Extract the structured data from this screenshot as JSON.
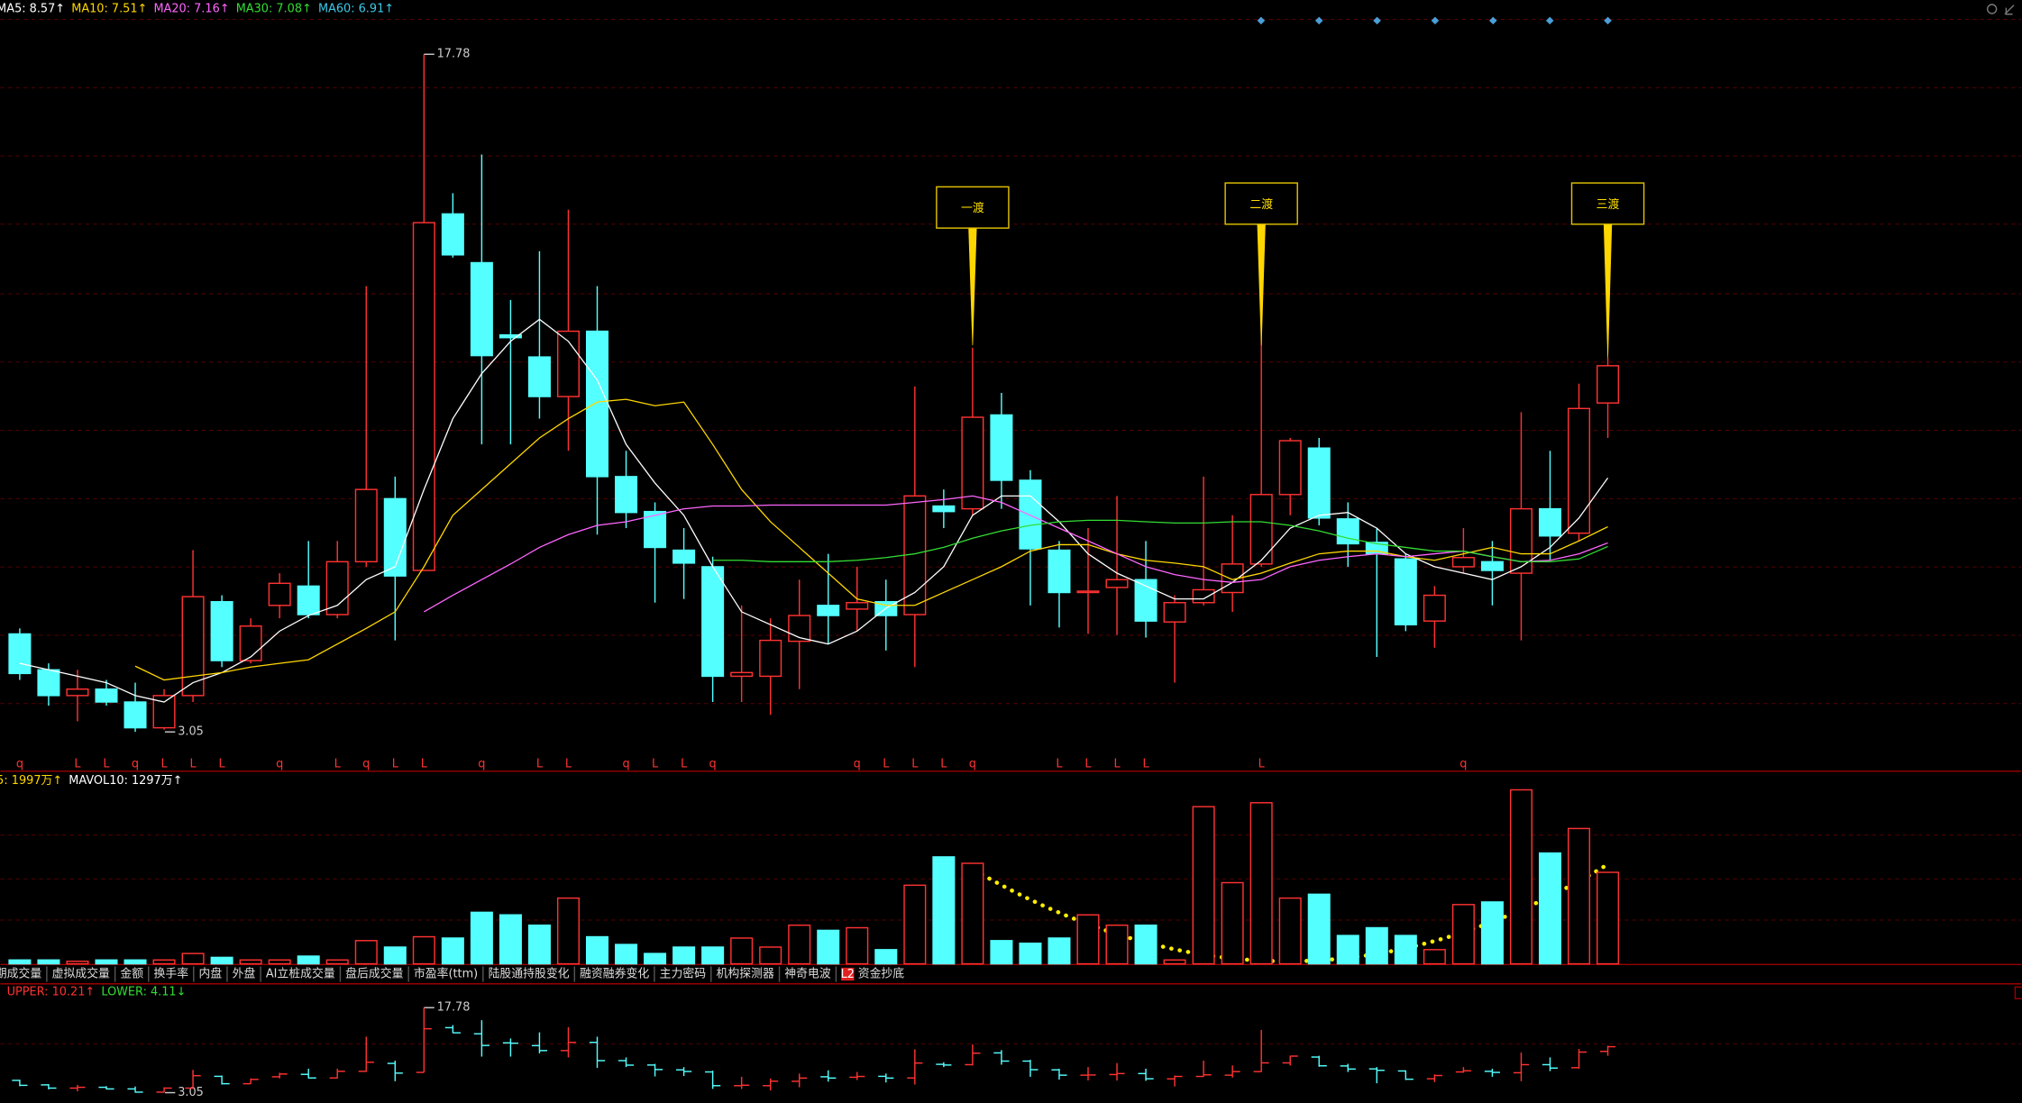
{
  "chart_data": [
    {
      "type": "candlestick",
      "legend": [
        {
          "text": "MA5: 8.57↑",
          "color": "#ffffff"
        },
        {
          "text": "MA10: 7.51↑",
          "color": "#ffd700"
        },
        {
          "text": "MA20: 7.16↑",
          "color": "#ff66ff"
        },
        {
          "text": "MA30: 7.08↑",
          "color": "#33dd33"
        },
        {
          "text": "MA60: 6.91↑",
          "color": "#3cc8e8"
        }
      ],
      "up_color": "#ff3232",
      "down_color": "#54ffff",
      "ylim": [
        2.21,
        18.96
      ],
      "open": [
        5.18,
        4.4,
        3.84,
        3.98,
        3.7,
        3.14,
        3.84,
        5.88,
        4.6,
        5.8,
        6.22,
        5.6,
        6.75,
        8.12,
        6.56,
        14.31,
        13.25,
        11.68,
        11.2,
        10.34,
        11.76,
        8.6,
        7.84,
        7.0,
        6.64,
        4.26,
        4.26,
        5.02,
        5.8,
        5.72,
        5.88,
        5.6,
        7.96,
        7.9,
        9.94,
        8.52,
        7.0,
        6.08,
        6.19,
        6.36,
        5.44,
        5.86,
        6.08,
        6.7,
        8.21,
        9.22,
        7.68,
        7.17,
        6.81,
        5.46,
        6.64,
        6.75,
        6.5,
        7.9,
        7.37,
        10.2
      ],
      "high": [
        5.3,
        4.54,
        4.4,
        4.18,
        4.12,
        3.98,
        7.0,
        6.02,
        5.52,
        6.5,
        7.2,
        7.2,
        12.74,
        8.6,
        17.78,
        14.76,
        15.6,
        12.44,
        13.5,
        14.4,
        12.74,
        9.16,
        8.04,
        7.48,
        6.86,
        5.8,
        5.52,
        6.36,
        6.92,
        6.64,
        6.36,
        10.56,
        8.32,
        11.4,
        10.42,
        8.74,
        7.2,
        7.48,
        8.18,
        7.2,
        6.02,
        8.6,
        7.76,
        13.92,
        9.44,
        9.44,
        8.04,
        7.48,
        6.92,
        6.22,
        7.48,
        7.2,
        10.0,
        9.16,
        10.62,
        11.18
      ],
      "low": [
        4.18,
        3.62,
        3.28,
        3.62,
        3.05,
        3.1,
        3.7,
        4.46,
        4.54,
        5.52,
        5.52,
        5.52,
        6.64,
        5.04,
        6.56,
        13.36,
        9.3,
        9.3,
        9.86,
        9.16,
        7.34,
        7.48,
        5.86,
        5.94,
        3.7,
        3.7,
        3.42,
        3.98,
        4.96,
        5.24,
        4.82,
        4.46,
        7.48,
        7.76,
        7.9,
        5.8,
        5.32,
        5.18,
        5.16,
        5.1,
        4.12,
        5.8,
        5.66,
        6.64,
        7.76,
        7.54,
        6.64,
        4.68,
        5.24,
        4.88,
        6.5,
        5.8,
        5.04,
        6.78,
        7.2,
        9.44
      ],
      "close": [
        4.32,
        3.84,
        3.98,
        3.7,
        3.14,
        3.84,
        5.99,
        4.6,
        5.35,
        6.28,
        5.6,
        6.75,
        8.32,
        6.44,
        14.12,
        13.42,
        11.23,
        11.62,
        10.34,
        11.76,
        8.6,
        7.82,
        7.06,
        6.72,
        4.26,
        4.34,
        5.04,
        5.58,
        5.58,
        5.86,
        5.58,
        8.18,
        7.84,
        9.89,
        8.52,
        7.03,
        6.08,
        6.11,
        6.36,
        5.46,
        5.86,
        6.14,
        6.7,
        8.21,
        9.38,
        7.7,
        7.14,
        6.92,
        5.38,
        6.02,
        6.84,
        6.56,
        7.9,
        7.31,
        10.08,
        11.01
      ],
      "lines": [
        {
          "color": "#ffffff",
          "values": [
            4.54,
            4.4,
            4.26,
            4.12,
            3.84,
            3.7,
            4.12,
            4.34,
            4.68,
            5.24,
            5.58,
            5.8,
            6.36,
            6.64,
            8.32,
            9.86,
            10.84,
            11.54,
            12.02,
            11.54,
            10.7,
            9.3,
            8.46,
            7.76,
            6.64,
            5.66,
            5.38,
            5.1,
            4.96,
            5.24,
            5.74,
            6.08,
            6.64,
            7.76,
            8.18,
            8.18,
            7.62,
            6.92,
            6.5,
            6.22,
            5.94,
            5.94,
            6.3,
            6.78,
            7.48,
            7.76,
            7.82,
            7.48,
            6.92,
            6.64,
            6.5,
            6.36,
            6.64,
            7.06,
            7.7,
            8.57
          ]
        },
        {
          "color": "#ffd700",
          "values": [
            null,
            null,
            null,
            null,
            4.48,
            4.18,
            4.26,
            4.34,
            4.46,
            4.54,
            4.62,
            4.96,
            5.3,
            5.66,
            6.64,
            7.76,
            8.32,
            8.88,
            9.44,
            9.86,
            10.22,
            10.28,
            10.14,
            10.22,
            9.3,
            8.32,
            7.62,
            7.06,
            6.5,
            5.94,
            5.8,
            5.8,
            6.08,
            6.36,
            6.64,
            6.98,
            7.12,
            7.12,
            6.92,
            6.78,
            6.72,
            6.64,
            6.36,
            6.5,
            6.72,
            6.92,
            6.98,
            6.98,
            6.86,
            6.78,
            6.92,
            7.06,
            6.92,
            6.92,
            7.2,
            7.51
          ]
        },
        {
          "color": "#ff66ff",
          "values": [
            null,
            null,
            null,
            null,
            null,
            null,
            null,
            null,
            null,
            null,
            null,
            null,
            null,
            null,
            5.66,
            6.02,
            6.36,
            6.7,
            7.06,
            7.34,
            7.54,
            7.62,
            7.76,
            7.9,
            7.96,
            7.96,
            7.98,
            7.98,
            7.98,
            7.98,
            7.98,
            8.04,
            8.1,
            8.18,
            8.04,
            7.76,
            7.48,
            7.2,
            6.92,
            6.64,
            6.47,
            6.36,
            6.3,
            6.36,
            6.64,
            6.78,
            6.86,
            6.92,
            6.86,
            6.92,
            6.98,
            6.86,
            6.75,
            6.78,
            6.92,
            7.16
          ]
        },
        {
          "color": "#33dd33",
          "values": [
            null,
            null,
            null,
            null,
            null,
            null,
            null,
            null,
            null,
            null,
            null,
            null,
            null,
            null,
            null,
            null,
            null,
            null,
            null,
            null,
            null,
            null,
            null,
            null,
            6.78,
            6.78,
            6.75,
            6.75,
            6.75,
            6.78,
            6.84,
            6.92,
            7.06,
            7.26,
            7.42,
            7.54,
            7.62,
            7.65,
            7.65,
            7.62,
            7.59,
            7.59,
            7.62,
            7.62,
            7.54,
            7.42,
            7.26,
            7.14,
            7.06,
            6.98,
            6.98,
            6.86,
            6.75,
            6.75,
            6.81,
            7.08
          ]
        }
      ],
      "max_label": 17.78,
      "min_label": 3.05,
      "signals": [
        "q",
        null,
        "L",
        "L",
        "q",
        "L",
        "L",
        "L",
        null,
        "q",
        null,
        "L",
        "q",
        "L",
        "L",
        null,
        "q",
        null,
        "L",
        "L",
        null,
        "q",
        "L",
        "L",
        "q",
        null,
        null,
        null,
        null,
        "q",
        "L",
        "L",
        "L",
        "q",
        null,
        null,
        "L",
        "L",
        "L",
        "L",
        null,
        null,
        null,
        "L",
        null,
        null,
        null,
        null,
        null,
        null,
        "q",
        null,
        null,
        null,
        null,
        null
      ],
      "annotations": [
        "一渡",
        "二渡",
        "三渡"
      ]
    },
    {
      "type": "volume",
      "legend": [
        {
          "text": "5: 1997万↑",
          "color": "#ffd700"
        },
        {
          "text": "MAVOL10: 1297万↑",
          "color": "#ffffff"
        }
      ],
      "ylim": [
        0,
        3405
      ],
      "values": [
        68,
        68,
        45,
        68,
        68,
        68,
        182,
        114,
        68,
        68,
        136,
        68,
        409,
        295,
        477,
        454,
        908,
        863,
        681,
        1158,
        477,
        341,
        182,
        295,
        295,
        454,
        295,
        681,
        590,
        636,
        250,
        1385,
        1884,
        1771,
        409,
        363,
        454,
        863,
        681,
        681,
        68,
        2769,
        1430,
        2838,
        1158,
        1226,
        499,
        636,
        499,
        250,
        1044,
        1090,
        3065,
        1952,
        2384,
        1612
      ]
    },
    {
      "type": "band",
      "legend": [
        {
          "text": "UPPER: 10.21↑",
          "color": "#ff3232"
        },
        {
          "text": "LOWER: 4.11↓",
          "color": "#33dd33"
        }
      ],
      "ylim": [
        1.26,
        22.02
      ]
    }
  ],
  "toolbar": {
    "tabs": [
      "期成交量",
      "虚拟成交量",
      "金额",
      "换手率",
      "内盘",
      "外盘",
      "AI立桩成交量",
      "盘后成交量",
      "市盈率(ttm)",
      "陆股通持股变化",
      "融资融券变化",
      "主力密码",
      "机构探测器",
      "神奇电波"
    ],
    "badge": "L2",
    "last_tab": "资金抄底"
  }
}
